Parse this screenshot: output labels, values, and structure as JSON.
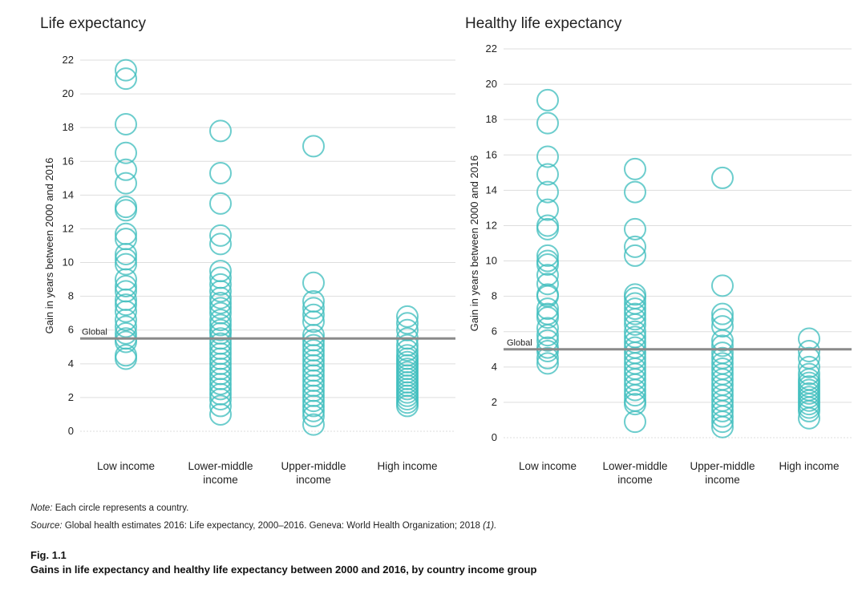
{
  "notes": {
    "note_label": "Note:",
    "note_text": " Each circle represents a country.",
    "source_label": "Source:",
    "source_text": " Global health estimates 2016: Life expectancy, 2000–2016. Geneva: World Health Organization; 2018 ",
    "source_ref": "(1)."
  },
  "figure": {
    "label": "Fig. 1.1",
    "caption": "Gains in life expectancy and healthy life expectancy between 2000 and 2016, by country income group"
  },
  "colors": {
    "circle": "#3bbcbc",
    "global_line": "#8a8a8a",
    "grid": "#dddddd"
  },
  "chart_data": [
    {
      "type": "scatter",
      "title": "Life expectancy",
      "ylabel": "Gain in years between 2000 and 2016",
      "xlabel": "",
      "ylim": [
        0,
        22
      ],
      "yticks": [
        0,
        2,
        4,
        6,
        8,
        10,
        12,
        14,
        16,
        18,
        20,
        22
      ],
      "categories": [
        "Low income",
        "Lower-middle income",
        "Upper-middle income",
        "High income"
      ],
      "category_lines": [
        [
          "Low income"
        ],
        [
          "Lower-middle",
          "income"
        ],
        [
          "Upper-middle",
          "income"
        ],
        [
          "High income"
        ]
      ],
      "global": {
        "label": "Global",
        "value": 5.5
      },
      "series": [
        {
          "name": "Low income",
          "values": [
            21.4,
            20.9,
            18.2,
            16.5,
            15.5,
            14.7,
            13.3,
            13.1,
            11.7,
            11.4,
            10.5,
            10.2,
            9.9,
            9.0,
            8.6,
            8.3,
            7.8,
            7.5,
            7.1,
            6.6,
            6.2,
            5.8,
            5.5,
            5.3,
            4.5,
            4.3
          ]
        },
        {
          "name": "Lower-middle income",
          "values": [
            17.8,
            15.3,
            13.5,
            11.6,
            11.1,
            9.5,
            9.1,
            8.7,
            8.3,
            7.9,
            7.6,
            7.3,
            7.0,
            6.6,
            6.3,
            6.0,
            5.8,
            5.5,
            5.2,
            4.9,
            4.6,
            4.3,
            4.0,
            3.7,
            3.4,
            3.1,
            2.8,
            2.5,
            2.2,
            1.9,
            1.5,
            1.0
          ]
        },
        {
          "name": "Upper-middle income",
          "values": [
            16.9,
            8.8,
            7.7,
            7.3,
            6.9,
            6.5,
            5.7,
            5.4,
            5.1,
            4.8,
            4.5,
            4.2,
            3.9,
            3.6,
            3.3,
            3.0,
            2.7,
            2.4,
            2.1,
            1.8,
            1.5,
            1.2,
            0.9,
            0.4
          ]
        },
        {
          "name": "High income",
          "values": [
            6.8,
            6.4,
            6.0,
            5.5,
            5.1,
            4.8,
            4.5,
            4.3,
            4.1,
            3.9,
            3.7,
            3.5,
            3.3,
            3.1,
            2.9,
            2.7,
            2.5,
            2.3,
            2.1,
            1.9,
            1.7,
            1.5
          ]
        }
      ]
    },
    {
      "type": "scatter",
      "title": "Healthy life expectancy",
      "ylabel": "Gain in years between 2000 and 2016",
      "xlabel": "",
      "ylim": [
        0,
        22
      ],
      "yticks": [
        0,
        2,
        4,
        6,
        8,
        10,
        12,
        14,
        16,
        18,
        20,
        22
      ],
      "categories": [
        "Low income",
        "Lower-middle income",
        "Upper-middle income",
        "High income"
      ],
      "category_lines": [
        [
          "Low income"
        ],
        [
          "Lower-middle",
          "income"
        ],
        [
          "Upper-middle",
          "income"
        ],
        [
          "High income"
        ]
      ],
      "global": {
        "label": "Global",
        "value": 5.0
      },
      "series": [
        {
          "name": "Low income",
          "values": [
            19.1,
            17.8,
            15.9,
            14.9,
            13.9,
            12.9,
            12.0,
            11.8,
            10.3,
            10.0,
            9.8,
            9.2,
            8.7,
            8.1,
            8.0,
            7.3,
            7.0,
            6.8,
            6.2,
            5.8,
            5.5,
            5.1,
            4.9,
            4.5,
            4.2
          ]
        },
        {
          "name": "Lower-middle income",
          "values": [
            15.2,
            13.9,
            11.8,
            10.8,
            10.3,
            8.1,
            7.9,
            7.6,
            7.3,
            7.0,
            6.7,
            6.4,
            6.0,
            5.7,
            5.4,
            5.1,
            4.8,
            4.5,
            4.2,
            3.9,
            3.6,
            3.3,
            3.0,
            2.7,
            2.4,
            2.1,
            1.9,
            0.9
          ]
        },
        {
          "name": "Upper-middle income",
          "values": [
            14.7,
            8.6,
            7.0,
            6.7,
            6.3,
            5.5,
            5.2,
            4.8,
            4.5,
            4.2,
            3.9,
            3.6,
            3.3,
            3.0,
            2.7,
            2.4,
            2.1,
            1.8,
            1.5,
            1.2,
            0.9,
            0.6
          ]
        },
        {
          "name": "High income",
          "values": [
            5.6,
            4.9,
            4.5,
            4.0,
            3.6,
            3.3,
            3.1,
            2.9,
            2.7,
            2.5,
            2.3,
            2.1,
            1.9,
            1.7,
            1.5,
            1.1
          ]
        }
      ]
    }
  ]
}
